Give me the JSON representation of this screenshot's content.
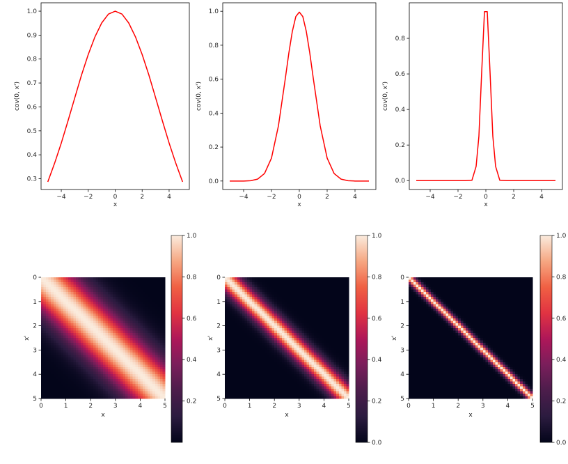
{
  "chart_data": [
    {
      "type": "line",
      "panel": "top-left",
      "xlabel": "x",
      "ylabel": "cov(0, x')",
      "xlim": [
        -5.5,
        5.5
      ],
      "ylim": [
        0.255,
        1.035
      ],
      "xticks": [
        -4,
        -2,
        0,
        2,
        4
      ],
      "xticklabels": [
        "−4",
        "−2",
        "0",
        "2",
        "4"
      ],
      "yticks": [
        0.3,
        0.4,
        0.5,
        0.6,
        0.7,
        0.8,
        0.9,
        1.0
      ],
      "yticklabels": [
        "0.3",
        "0.4",
        "0.5",
        "0.6",
        "0.7",
        "0.8",
        "0.9",
        "1.0"
      ],
      "color": "#ff0000",
      "x": [
        -5,
        -4.5,
        -4,
        -3.5,
        -3,
        -2.5,
        -2,
        -1.5,
        -1,
        -0.5,
        0,
        0.5,
        1,
        1.5,
        2,
        2.5,
        3,
        3.5,
        4,
        4.5,
        5
      ],
      "y": [
        0.287,
        0.364,
        0.449,
        0.542,
        0.638,
        0.733,
        0.819,
        0.893,
        0.951,
        0.988,
        1.0,
        0.988,
        0.951,
        0.893,
        0.819,
        0.733,
        0.638,
        0.542,
        0.449,
        0.364,
        0.287
      ]
    },
    {
      "type": "line",
      "panel": "top-middle",
      "xlabel": "x",
      "ylabel": "cov(0, x')",
      "xlim": [
        -5.5,
        5.5
      ],
      "ylim": [
        -0.05,
        1.05
      ],
      "xticks": [
        -4,
        -2,
        0,
        2,
        4
      ],
      "xticklabels": [
        "−4",
        "−2",
        "0",
        "2",
        "4"
      ],
      "yticks": [
        0.0,
        0.2,
        0.4,
        0.6,
        0.8,
        1.0
      ],
      "yticklabels": [
        "0.0",
        "0.2",
        "0.4",
        "0.6",
        "0.8",
        "1.0"
      ],
      "color": "#ff0000",
      "x": [
        -5,
        -4.5,
        -4,
        -3.5,
        -3,
        -2.5,
        -2,
        -1.5,
        -1,
        -0.75,
        -0.5,
        -0.25,
        0,
        0.25,
        0.5,
        0.75,
        1,
        1.5,
        2,
        2.5,
        3,
        3.5,
        4,
        4.5,
        5
      ],
      "y": [
        0.0,
        0.0,
        0.0,
        0.002,
        0.011,
        0.044,
        0.135,
        0.325,
        0.607,
        0.755,
        0.882,
        0.969,
        0.995,
        0.969,
        0.882,
        0.755,
        0.607,
        0.325,
        0.135,
        0.044,
        0.011,
        0.002,
        0.0,
        0.0,
        0.0
      ]
    },
    {
      "type": "line",
      "panel": "top-right",
      "xlabel": "x",
      "ylabel": "cov(0, x')",
      "xlim": [
        -5.5,
        5.5
      ],
      "ylim": [
        -0.05,
        1.0
      ],
      "xticks": [
        -4,
        -2,
        0,
        2,
        4
      ],
      "xticklabels": [
        "−4",
        "−2",
        "0",
        "2",
        "4"
      ],
      "yticks": [
        0.0,
        0.2,
        0.4,
        0.6,
        0.8
      ],
      "yticklabels": [
        "0.0",
        "0.2",
        "0.4",
        "0.6",
        "0.8"
      ],
      "color": "#ff0000",
      "x": [
        -5,
        -4.5,
        -4,
        -3.5,
        -3,
        -2.5,
        -2,
        -1.5,
        -1,
        -0.7,
        -0.5,
        -0.3,
        -0.1,
        0.1,
        0.3,
        0.5,
        0.7,
        1,
        1.5,
        2,
        2.5,
        3,
        3.5,
        4,
        4.5,
        5
      ],
      "y": [
        0.0,
        0.0,
        0.0,
        0.0,
        0.0,
        0.0,
        0.0,
        0.0,
        0.002,
        0.08,
        0.25,
        0.61,
        0.95,
        0.95,
        0.61,
        0.25,
        0.08,
        0.002,
        0.0,
        0.0,
        0.0,
        0.0,
        0.0,
        0.0,
        0.0,
        0.0
      ]
    },
    {
      "type": "heatmap",
      "panel": "bottom-left",
      "xlabel": "x",
      "ylabel": "x'",
      "xlim": [
        0,
        5
      ],
      "ylim": [
        5,
        0
      ],
      "xticks": [
        0,
        1,
        2,
        3,
        4,
        5
      ],
      "xticklabels": [
        "0",
        "1",
        "2",
        "3",
        "4",
        "5"
      ],
      "yticks": [
        0,
        1,
        2,
        3,
        4,
        5
      ],
      "yticklabels": [
        "0",
        "1",
        "2",
        "3",
        "4",
        "5"
      ],
      "grid_size": 50,
      "kernel_lengthscale": 1.0,
      "colormap": "rocket",
      "colorbar_range": [
        0.0,
        1.0
      ],
      "colorbar_ticks": [
        0.2,
        0.4,
        0.6,
        0.8,
        1.0
      ],
      "colorbar_ticklabels": [
        "0.2",
        "0.4",
        "0.6",
        "0.8",
        "1.0"
      ]
    },
    {
      "type": "heatmap",
      "panel": "bottom-middle",
      "xlabel": "x",
      "ylabel": "x'",
      "xlim": [
        0,
        5
      ],
      "ylim": [
        5,
        0
      ],
      "xticks": [
        0,
        1,
        2,
        3,
        4,
        5
      ],
      "xticklabels": [
        "0",
        "1",
        "2",
        "3",
        "4",
        "5"
      ],
      "yticks": [
        0,
        1,
        2,
        3,
        4,
        5
      ],
      "yticklabels": [
        "0",
        "1",
        "2",
        "3",
        "4",
        "5"
      ],
      "grid_size": 50,
      "kernel_lengthscale": 0.4,
      "colormap": "rocket",
      "colorbar_range": [
        0.0,
        1.0
      ],
      "colorbar_ticks": [
        0.0,
        0.2,
        0.4,
        0.6,
        0.8,
        1.0
      ],
      "colorbar_ticklabels": [
        "0.0",
        "0.2",
        "0.4",
        "0.6",
        "0.8",
        "1.0"
      ]
    },
    {
      "type": "heatmap",
      "panel": "bottom-right",
      "xlabel": "x",
      "ylabel": "x'",
      "xlim": [
        0,
        5
      ],
      "ylim": [
        5,
        0
      ],
      "xticks": [
        0,
        1,
        2,
        3,
        4,
        5
      ],
      "xticklabels": [
        "0",
        "1",
        "2",
        "3",
        "4",
        "5"
      ],
      "yticks": [
        0,
        1,
        2,
        3,
        4,
        5
      ],
      "yticklabels": [
        "0",
        "1",
        "2",
        "3",
        "4",
        "5"
      ],
      "grid_size": 50,
      "kernel_lengthscale": 0.15,
      "colormap": "rocket",
      "colorbar_range": [
        0.0,
        1.0
      ],
      "colorbar_ticks": [
        0.0,
        0.2,
        0.4,
        0.6,
        0.8,
        1.0
      ],
      "colorbar_ticklabels": [
        "0.0",
        "0.2",
        "0.4",
        "0.6",
        "0.8",
        "1.0"
      ]
    }
  ]
}
